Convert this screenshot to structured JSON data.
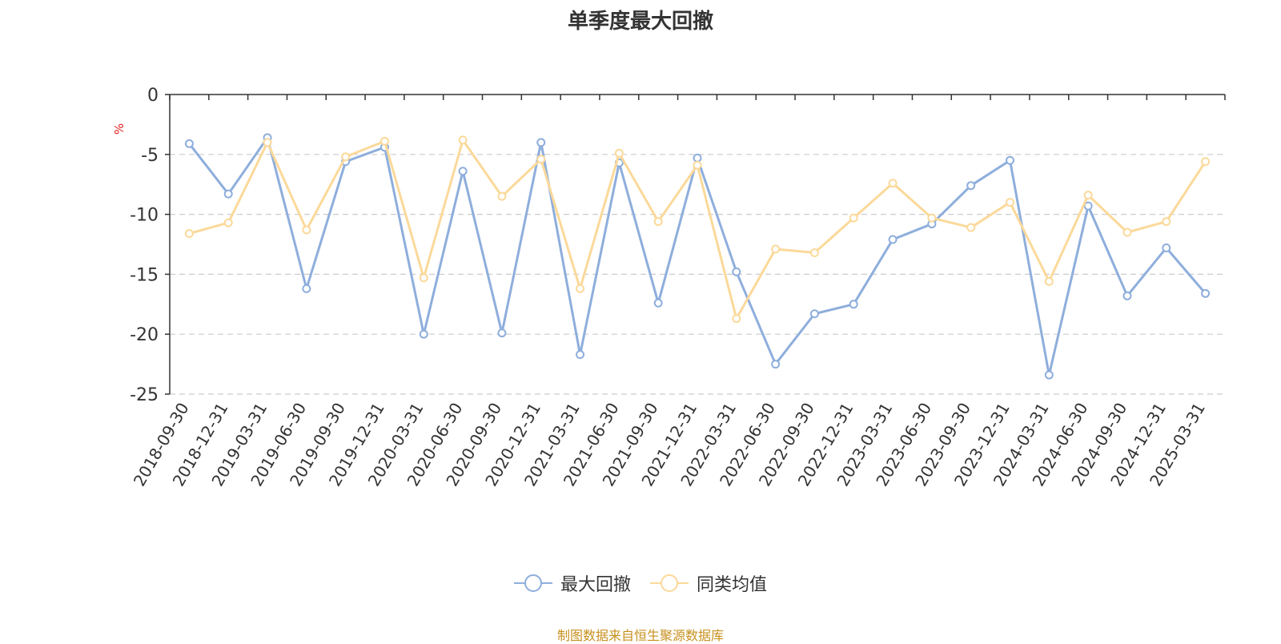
{
  "chart_data": {
    "type": "line",
    "title": "单季度最大回撤",
    "ylabel": "%",
    "ylim": [
      -25,
      0
    ],
    "yticks": [
      0,
      -5,
      -10,
      -15,
      -20,
      -25
    ],
    "grid": true,
    "legend_position": "bottom",
    "categories": [
      "2018-09-30",
      "2018-12-31",
      "2019-03-31",
      "2019-06-30",
      "2019-09-30",
      "2019-12-31",
      "2020-03-31",
      "2020-06-30",
      "2020-09-30",
      "2020-12-31",
      "2021-03-31",
      "2021-06-30",
      "2021-09-30",
      "2021-12-31",
      "2022-03-31",
      "2022-06-30",
      "2022-09-30",
      "2022-12-31",
      "2023-03-31",
      "2023-06-30",
      "2023-09-30",
      "2023-12-31",
      "2024-03-31",
      "2024-06-30",
      "2024-09-30",
      "2024-12-31",
      "2025-03-31"
    ],
    "series": [
      {
        "name": "最大回撤",
        "color": "#8eaedc",
        "values": [
          -4.1,
          -8.3,
          -3.6,
          -16.2,
          -5.6,
          -4.4,
          -20.0,
          -6.4,
          -19.9,
          -4.0,
          -21.7,
          -5.7,
          -17.4,
          -5.3,
          -14.8,
          -22.5,
          -18.3,
          -17.5,
          -12.1,
          -10.8,
          -7.6,
          -5.5,
          -23.4,
          -9.3,
          -16.8,
          -12.8,
          -16.6
        ]
      },
      {
        "name": "同类均值",
        "color": "#fbd99a",
        "values": [
          -11.6,
          -10.7,
          -4.0,
          -11.3,
          -5.2,
          -3.9,
          -15.3,
          -3.8,
          -8.5,
          -5.4,
          -16.2,
          -4.9,
          -10.6,
          -5.9,
          -18.7,
          -12.9,
          -13.2,
          -10.3,
          -7.4,
          -10.3,
          -11.1,
          -9.0,
          -15.6,
          -8.4,
          -11.5,
          -10.6,
          -5.6
        ]
      }
    ]
  },
  "footer": {
    "source": "制图数据来自恒生聚源数据库"
  },
  "colors": {
    "unit": "#e02020",
    "source": "#c8901e",
    "axis": "#333333",
    "grid": "#cccccc"
  }
}
